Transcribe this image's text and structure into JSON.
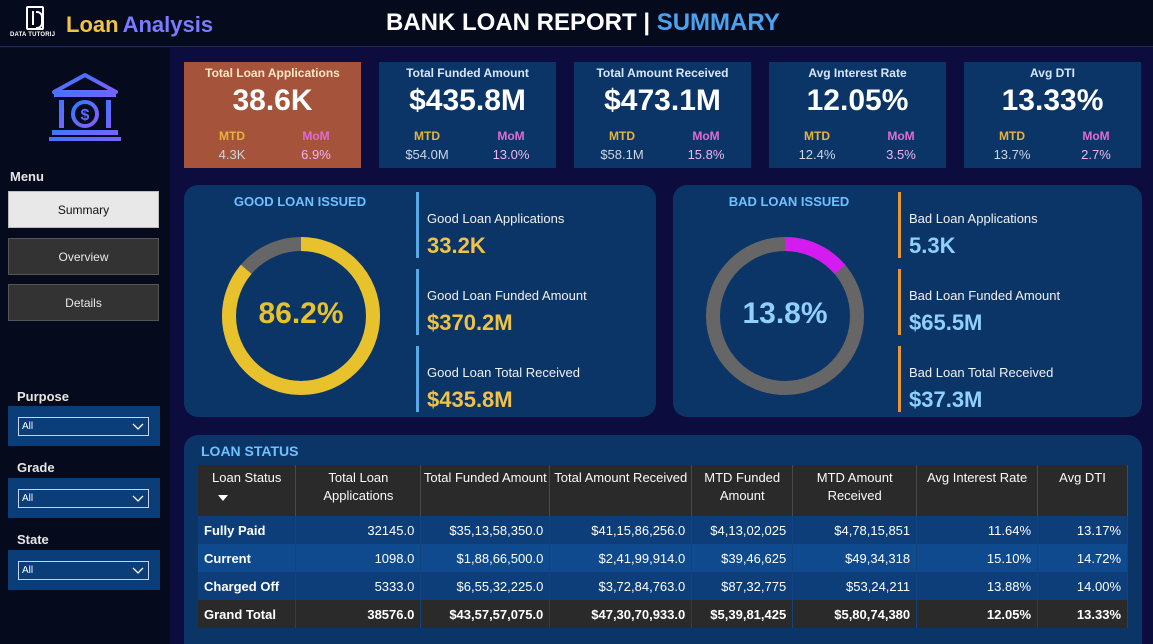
{
  "header": {
    "logo_brand": "DATA TUTORIJ",
    "app_title_part1": "Loan",
    "app_title_part2": "Analysis",
    "report_title_main": "BANK LOAN REPORT |",
    "report_title_accent": "SUMMARY"
  },
  "sidebar": {
    "menu_label": "Menu",
    "nav": [
      "Summary",
      "Overview",
      "Details"
    ],
    "filters": [
      {
        "label": "Purpose",
        "value": "All"
      },
      {
        "label": "Grade",
        "value": "All"
      },
      {
        "label": "State",
        "value": "All"
      }
    ]
  },
  "kpis": [
    {
      "title": "Total Loan Applications",
      "value": "38.6K",
      "mtd_label": "MTD",
      "mtd": "4.3K",
      "mom_label": "MoM",
      "mom": "6.9%"
    },
    {
      "title": "Total Funded Amount",
      "value": "$435.8M",
      "mtd_label": "MTD",
      "mtd": "$54.0M",
      "mom_label": "MoM",
      "mom": "13.0%"
    },
    {
      "title": "Total Amount Received",
      "value": "$473.1M",
      "mtd_label": "MTD",
      "mtd": "$58.1M",
      "mom_label": "MoM",
      "mom": "15.8%"
    },
    {
      "title": "Avg Interest Rate",
      "value": "12.05%",
      "mtd_label": "MTD",
      "mtd": "12.4%",
      "mom_label": "MoM",
      "mom": "3.5%"
    },
    {
      "title": "Avg DTI",
      "value": "13.33%",
      "mtd_label": "MTD",
      "mtd": "13.7%",
      "mom_label": "MoM",
      "mom": "2.7%"
    }
  ],
  "good_loan": {
    "title": "GOOD LOAN ISSUED",
    "percent_label": "86.2%",
    "percent": 86.2,
    "color": "#e8c22c",
    "metrics": [
      {
        "label": "Good Loan Applications",
        "value": "33.2K"
      },
      {
        "label": "Good Loan Funded Amount",
        "value": "$370.2M"
      },
      {
        "label": "Good Loan Total Received",
        "value": "$435.8M"
      }
    ]
  },
  "bad_loan": {
    "title": "BAD LOAN ISSUED",
    "percent_label": "13.8%",
    "percent": 13.8,
    "color": "#d41cf0",
    "metrics": [
      {
        "label": "Bad Loan Applications",
        "value": "5.3K"
      },
      {
        "label": "Bad Loan Funded Amount",
        "value": "$65.5M"
      },
      {
        "label": "Bad Loan Total Received",
        "value": "$37.3M"
      }
    ]
  },
  "loan_status": {
    "title": "LOAN STATUS",
    "columns": [
      "Loan Status",
      "Total Loan Applications",
      "Total Funded Amount",
      "Total Amount Received",
      "MTD Funded Amount",
      "MTD Amount Received",
      "Avg Interest Rate",
      "Avg DTI"
    ],
    "rows": [
      [
        "Fully Paid",
        "32145.0",
        "$35,13,58,350.0",
        "$41,15,86,256.0",
        "$4,13,02,025",
        "$4,78,15,851",
        "11.64%",
        "13.17%"
      ],
      [
        "Current",
        "1098.0",
        "$1,88,66,500.0",
        "$2,41,99,914.0",
        "$39,46,625",
        "$49,34,318",
        "15.10%",
        "14.72%"
      ],
      [
        "Charged Off",
        "5333.0",
        "$6,55,32,225.0",
        "$3,72,84,763.0",
        "$87,32,775",
        "$53,24,211",
        "13.88%",
        "14.00%"
      ]
    ],
    "total": [
      "Grand Total",
      "38576.0",
      "$43,57,57,075.0",
      "$47,30,70,933.0",
      "$5,39,81,425",
      "$5,80,74,380",
      "12.05%",
      "13.33%"
    ]
  }
}
